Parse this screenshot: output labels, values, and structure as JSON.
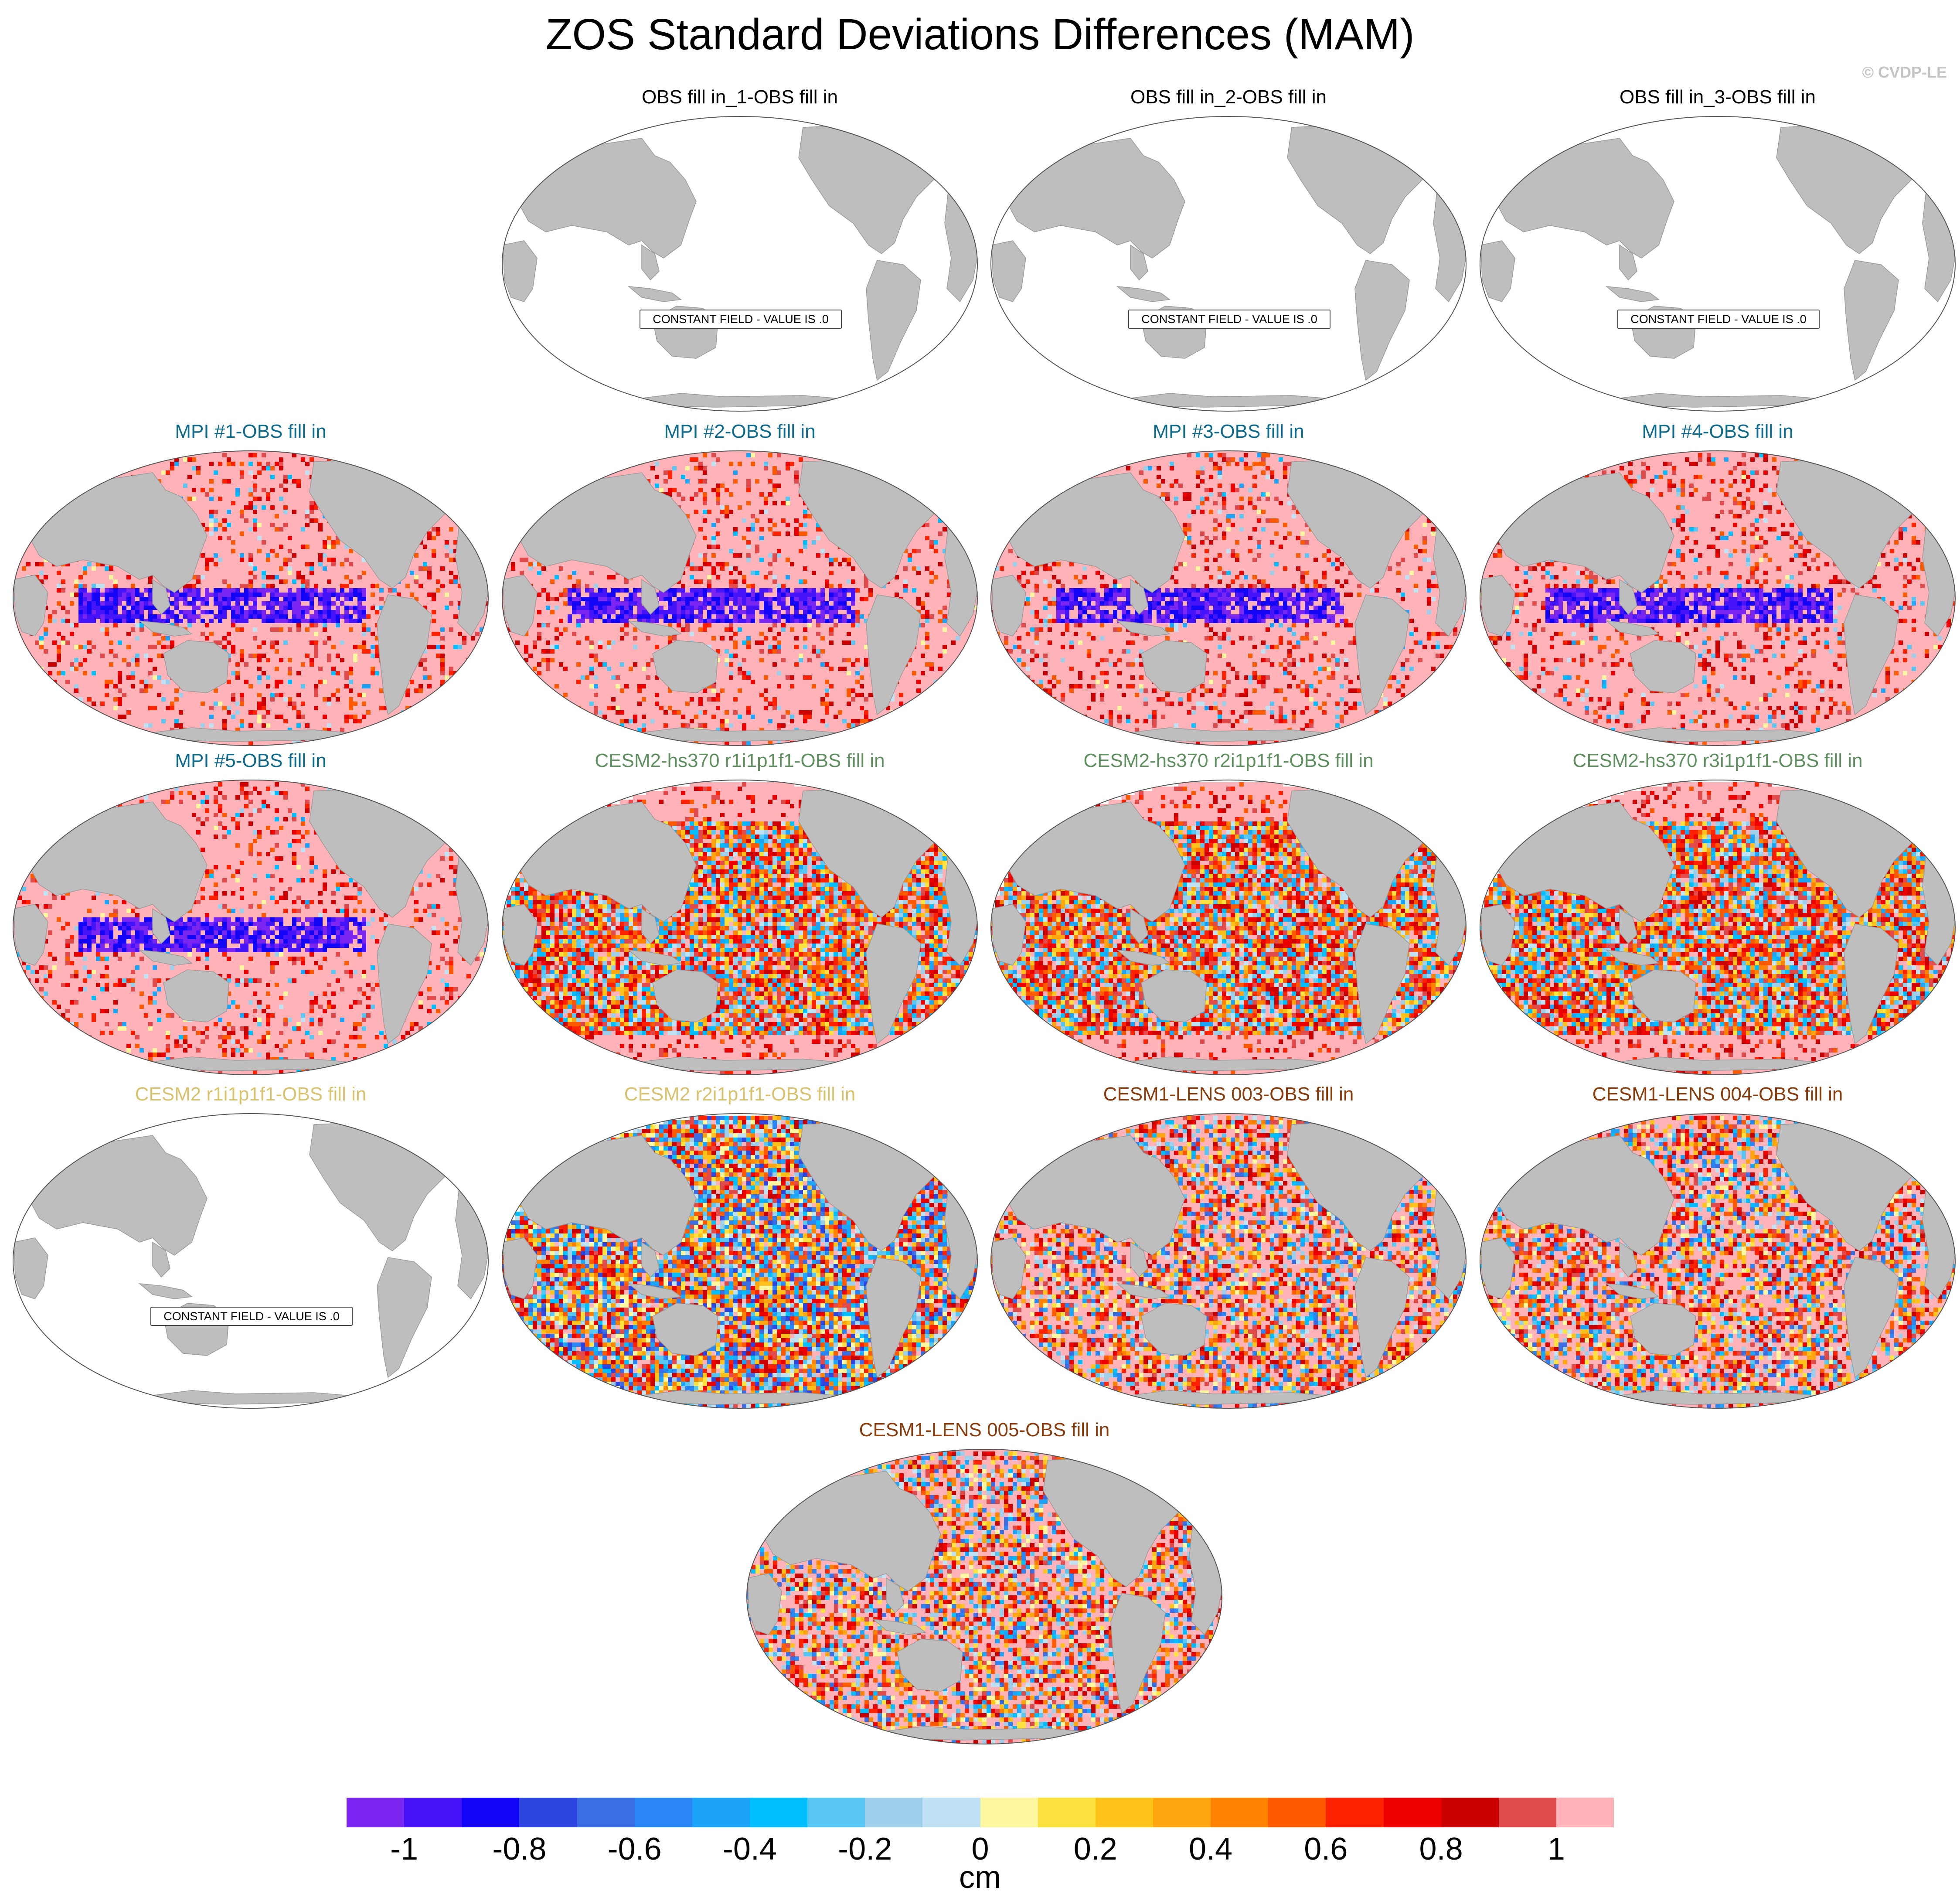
{
  "title": "ZOS Standard Deviations Differences (MAM)",
  "credit": "© CVDP-LE",
  "colors": {
    "obs_title": "#000000",
    "mpi_title": "#0c6a8c",
    "cesm2_hs370_title": "#5e8f5e",
    "cesm2_title": "#d9c26e",
    "cesm1_lens_title": "#8a3b0b",
    "land": "#bebebe",
    "ocean_blank": "#ffffff"
  },
  "constant_field_label": "CONSTANT FIELD - VALUE IS .0",
  "panels": [
    {
      "title": "OBS fill in_1-OBS fill in",
      "group": "obs",
      "constant": true,
      "pattern": "constant"
    },
    {
      "title": "OBS fill in_2-OBS fill in",
      "group": "obs",
      "constant": true,
      "pattern": "constant"
    },
    {
      "title": "OBS fill in_3-OBS fill in",
      "group": "obs",
      "constant": true,
      "pattern": "constant"
    },
    {
      "title": "MPI #1-OBS fill in",
      "group": "mpi",
      "constant": false,
      "pattern": "mpi"
    },
    {
      "title": "MPI #2-OBS fill in",
      "group": "mpi",
      "constant": false,
      "pattern": "mpi"
    },
    {
      "title": "MPI #3-OBS fill in",
      "group": "mpi",
      "constant": false,
      "pattern": "mpi"
    },
    {
      "title": "MPI #4-OBS fill in",
      "group": "mpi",
      "constant": false,
      "pattern": "mpi"
    },
    {
      "title": "MPI #5-OBS fill in",
      "group": "mpi",
      "constant": false,
      "pattern": "mpi"
    },
    {
      "title": "CESM2-hs370 r1i1p1f1-OBS fill in",
      "group": "cesm2_hs370",
      "constant": false,
      "pattern": "warm"
    },
    {
      "title": "CESM2-hs370 r2i1p1f1-OBS fill in",
      "group": "cesm2_hs370",
      "constant": false,
      "pattern": "warm"
    },
    {
      "title": "CESM2-hs370 r3i1p1f1-OBS fill in",
      "group": "cesm2_hs370",
      "constant": false,
      "pattern": "warm"
    },
    {
      "title": "CESM2 r1i1p1f1-OBS fill in",
      "group": "cesm2",
      "constant": true,
      "pattern": "constant"
    },
    {
      "title": "CESM2 r2i1p1f1-OBS fill in",
      "group": "cesm2",
      "constant": false,
      "pattern": "mixed"
    },
    {
      "title": "CESM1-LENS 003-OBS fill in",
      "group": "cesm1_lens",
      "constant": false,
      "pattern": "lens"
    },
    {
      "title": "CESM1-LENS 004-OBS fill in",
      "group": "cesm1_lens",
      "constant": false,
      "pattern": "lens"
    },
    {
      "title": "CESM1-LENS 005-OBS fill in",
      "group": "cesm1_lens",
      "constant": false,
      "pattern": "lens"
    }
  ],
  "colorbar": {
    "units": "cm",
    "colors": [
      "#7a26f0",
      "#4614f8",
      "#1306f6",
      "#2e46e0",
      "#3a6ee2",
      "#2a86f4",
      "#1ca4f8",
      "#00beff",
      "#57c6f2",
      "#9dcfea",
      "#bfe2f4",
      "#fff7a0",
      "#ffe23f",
      "#ffc21a",
      "#ffa50f",
      "#ff8200",
      "#ff5a00",
      "#ff2200",
      "#ec0000",
      "#cc0000",
      "#e04a4a",
      "#ffb3b8"
    ],
    "tick_labels": [
      "-1",
      "-0.8",
      "-0.6",
      "-0.4",
      "-0.2",
      "0",
      "0.2",
      "0.4",
      "0.6",
      "0.8",
      "1"
    ],
    "tick_values": [
      -1,
      -0.8,
      -0.6,
      -0.4,
      -0.2,
      0,
      0.2,
      0.4,
      0.6,
      0.8,
      1
    ],
    "range": [
      -1.1,
      1.1
    ]
  }
}
